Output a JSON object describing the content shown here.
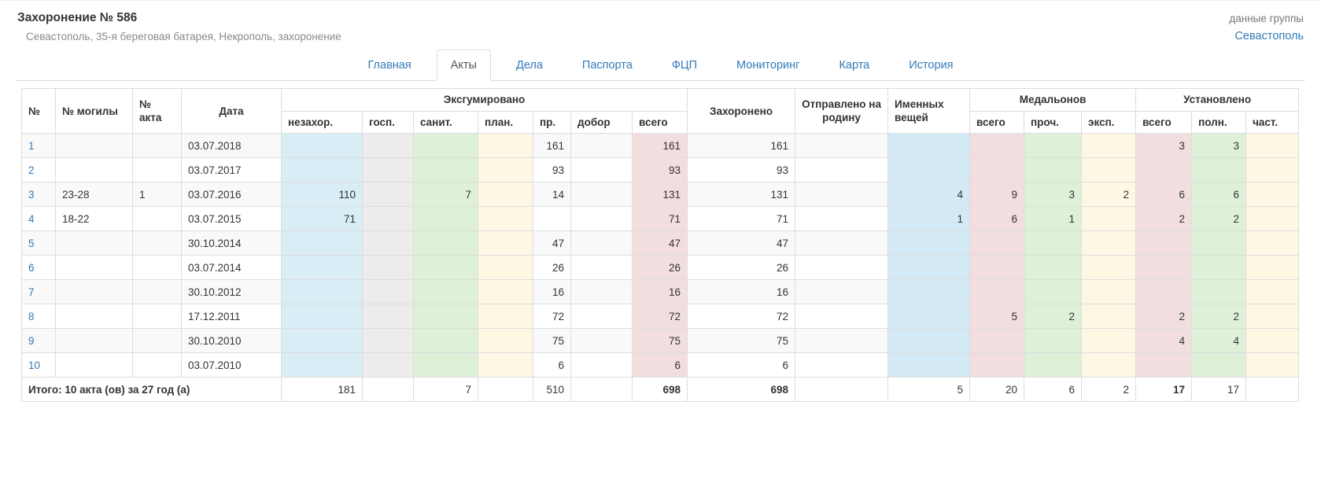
{
  "page": {
    "title": "Захоронение № 586",
    "subtitle": "Севастополь, 35-я береговая батарея, Некрополь, захоронение",
    "group_label": "данные группы",
    "group_link": "Севастополь"
  },
  "tabs": [
    {
      "label": "Главная",
      "active": false
    },
    {
      "label": "Акты",
      "active": true
    },
    {
      "label": "Дела",
      "active": false
    },
    {
      "label": "Паспорта",
      "active": false
    },
    {
      "label": "ФЦП",
      "active": false
    },
    {
      "label": "Мониторинг",
      "active": false
    },
    {
      "label": "Карта",
      "active": false
    },
    {
      "label": "История",
      "active": false
    }
  ],
  "table": {
    "headers": {
      "num": "№",
      "grave": "№ могилы",
      "act": "№ акта",
      "date": "Дата",
      "exhumed": "Эксгумировано",
      "exhumed_cols": [
        "незахор.",
        "госп.",
        "санит.",
        "план.",
        "пр.",
        "добор",
        "всего"
      ],
      "buried": "Захоронено",
      "sent_home": "Отправлено на родину",
      "named_items": "Именных вещей",
      "medallions": "Медальонов",
      "medallion_cols": [
        "всего",
        "проч.",
        "эксп."
      ],
      "installed": "Установлено",
      "installed_cols": [
        "всего",
        "полн.",
        "част."
      ]
    },
    "rows": [
      [
        "1",
        "",
        "",
        "03.07.2018",
        "",
        "",
        "",
        "",
        "161",
        "",
        "161",
        "161",
        "",
        "",
        "",
        "",
        "",
        "3",
        "3",
        ""
      ],
      [
        "2",
        "",
        "",
        "03.07.2017",
        "",
        "",
        "",
        "",
        "93",
        "",
        "93",
        "93",
        "",
        "",
        "",
        "",
        "",
        "",
        "",
        ""
      ],
      [
        "3",
        "23-28",
        "1",
        "03.07.2016",
        "110",
        "",
        "7",
        "",
        "14",
        "",
        "131",
        "131",
        "",
        "4",
        "9",
        "3",
        "2",
        "6",
        "6",
        ""
      ],
      [
        "4",
        "18-22",
        "",
        "03.07.2015",
        "71",
        "",
        "",
        "",
        "",
        "",
        "71",
        "71",
        "",
        "1",
        "6",
        "1",
        "",
        "2",
        "2",
        ""
      ],
      [
        "5",
        "",
        "",
        "30.10.2014",
        "",
        "",
        "",
        "",
        "47",
        "",
        "47",
        "47",
        "",
        "",
        "",
        "",
        "",
        "",
        "",
        ""
      ],
      [
        "6",
        "",
        "",
        "03.07.2014",
        "",
        "",
        "",
        "",
        "26",
        "",
        "26",
        "26",
        "",
        "",
        "",
        "",
        "",
        "",
        "",
        ""
      ],
      [
        "7",
        "",
        "",
        "30.10.2012",
        "",
        "",
        "",
        "",
        "16",
        "",
        "16",
        "16",
        "",
        "",
        "",
        "",
        "",
        "",
        "",
        ""
      ],
      [
        "8",
        "",
        "",
        "17.12.2011",
        "",
        "",
        "",
        "",
        "72",
        "",
        "72",
        "72",
        "",
        "",
        "5",
        "2",
        "",
        "2",
        "2",
        ""
      ],
      [
        "9",
        "",
        "",
        "30.10.2010",
        "",
        "",
        "",
        "",
        "75",
        "",
        "75",
        "75",
        "",
        "",
        "",
        "",
        "",
        "4",
        "4",
        ""
      ],
      [
        "10",
        "",
        "",
        "03.07.2010",
        "",
        "",
        "",
        "",
        "6",
        "",
        "6",
        "6",
        "",
        "",
        "",
        "",
        "",
        "",
        "",
        ""
      ]
    ],
    "totals": {
      "label": "Итого: 10 акта (ов) за 27 год (а)",
      "values": [
        "181",
        "",
        "7",
        "",
        "510",
        "",
        "698",
        "698",
        "",
        "5",
        "20",
        "6",
        "2",
        "17",
        "17",
        ""
      ]
    }
  },
  "colors": {
    "link_blue": "#337ab7",
    "tab_active_text": "#555555",
    "col_blue": "#d9edf7",
    "col_blue_deep": "#d3eaf6",
    "col_gray": "#ececec",
    "col_green": "#dff0d8",
    "col_yellow": "#fcf8e3",
    "col_pink": "#f2dede",
    "stripe": "#f9f9f9",
    "border": "#dddddd"
  }
}
